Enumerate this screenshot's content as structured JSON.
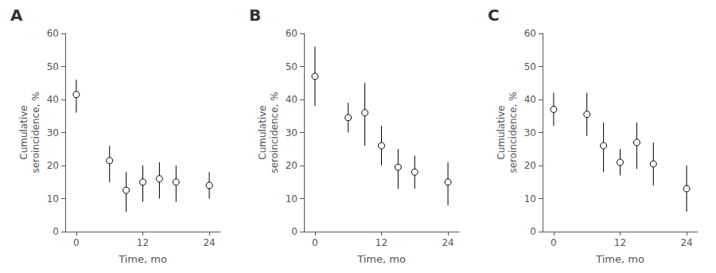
{
  "chart_data": [
    {
      "type": "scatter",
      "title": "A",
      "x": [
        0,
        6,
        9,
        12,
        15,
        18,
        24
      ],
      "values": [
        41.5,
        21.5,
        12.5,
        15.0,
        16.0,
        15.0,
        14.0
      ],
      "yerr_lo": [
        5.5,
        6.5,
        6.5,
        6.0,
        6.0,
        6.0,
        4.0
      ],
      "yerr_hi": [
        4.5,
        4.5,
        5.5,
        5.0,
        5.0,
        5.0,
        4.0
      ],
      "xlabel": "Time, mo",
      "ylabel": "Cumulative\nseroincidence, %",
      "xlim": [
        -2,
        26
      ],
      "xticks": [
        0,
        12,
        24
      ],
      "ylim": [
        0,
        60
      ],
      "yticks": [
        0,
        10,
        20,
        30,
        40,
        50,
        60
      ],
      "color": "#000000",
      "marker": "circle",
      "grid": false
    },
    {
      "type": "scatter",
      "title": "B",
      "x": [
        0,
        6,
        9,
        12,
        15,
        18,
        24
      ],
      "values": [
        47.0,
        34.5,
        36.0,
        26.0,
        19.5,
        18.0,
        15.0
      ],
      "yerr_lo": [
        9.0,
        4.5,
        10.0,
        6.0,
        6.5,
        5.0,
        7.0
      ],
      "yerr_hi": [
        9.0,
        4.5,
        9.0,
        6.0,
        5.5,
        5.0,
        6.0
      ],
      "xlabel": "Time, mo",
      "ylabel": "Cumulative\nseroincidence, %",
      "xlim": [
        -2,
        26
      ],
      "xticks": [
        0,
        12,
        24
      ],
      "ylim": [
        0,
        60
      ],
      "yticks": [
        0,
        10,
        20,
        30,
        40,
        50,
        60
      ],
      "color": "#000000",
      "marker": "circle",
      "grid": false
    },
    {
      "type": "scatter",
      "title": "C",
      "x": [
        0,
        6,
        9,
        12,
        15,
        18,
        24
      ],
      "values": [
        37.0,
        35.5,
        26.0,
        21.0,
        27.0,
        20.5,
        13.0
      ],
      "yerr_lo": [
        5.0,
        6.5,
        8.0,
        4.0,
        8.0,
        6.5,
        7.0
      ],
      "yerr_hi": [
        5.0,
        6.5,
        7.0,
        4.0,
        6.0,
        6.5,
        7.0
      ],
      "xlabel": "Time, mo",
      "ylabel": "Cumulative\nseroincidence, %",
      "xlim": [
        -2,
        26
      ],
      "xticks": [
        0,
        12,
        24
      ],
      "ylim": [
        0,
        60
      ],
      "yticks": [
        0,
        10,
        20,
        30,
        40,
        50,
        60
      ],
      "color": "#000000",
      "marker": "circle",
      "grid": false
    }
  ]
}
